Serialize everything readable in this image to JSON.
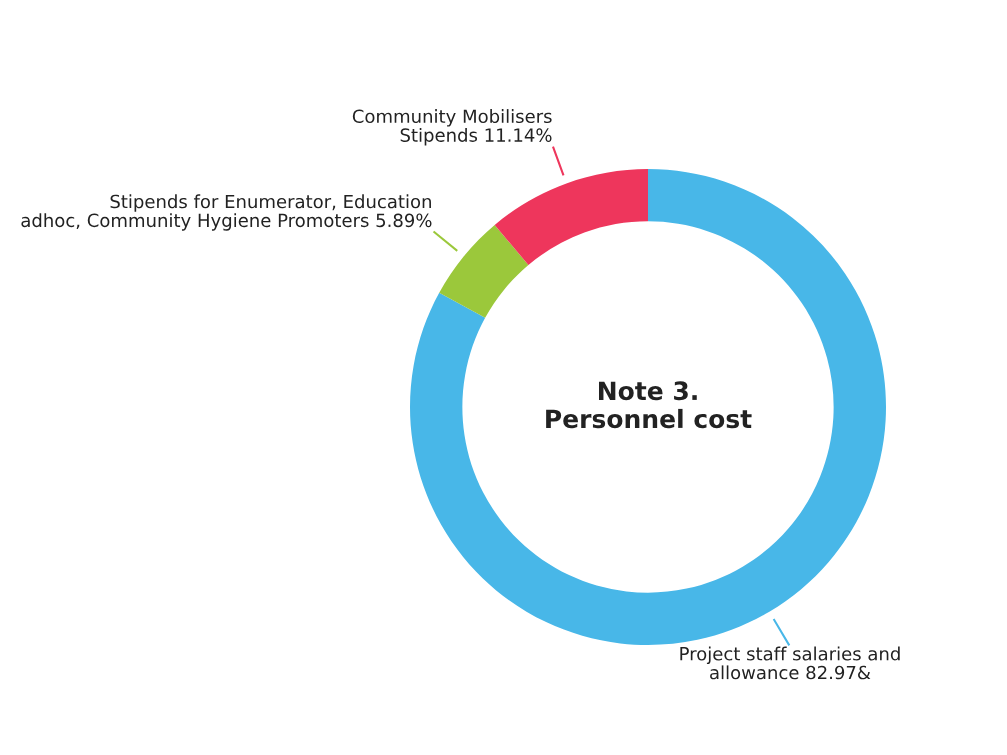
{
  "chart_data": {
    "type": "donut",
    "title": "Note 3.\nPersonnel cost",
    "categories": [
      "Project staff salaries and\nallowance",
      "Stipends for Enumerator, Education\nadhoc, Community Hygiene Promoters",
      "Community Mobilisers\nStipends"
    ],
    "values": [
      82.97,
      5.89,
      11.14
    ],
    "value_labels": [
      "82.97&",
      "5.89%",
      "11.14%"
    ],
    "colors": [
      "#48b7e8",
      "#9bc83b",
      "#ee365c"
    ],
    "legend": false
  }
}
